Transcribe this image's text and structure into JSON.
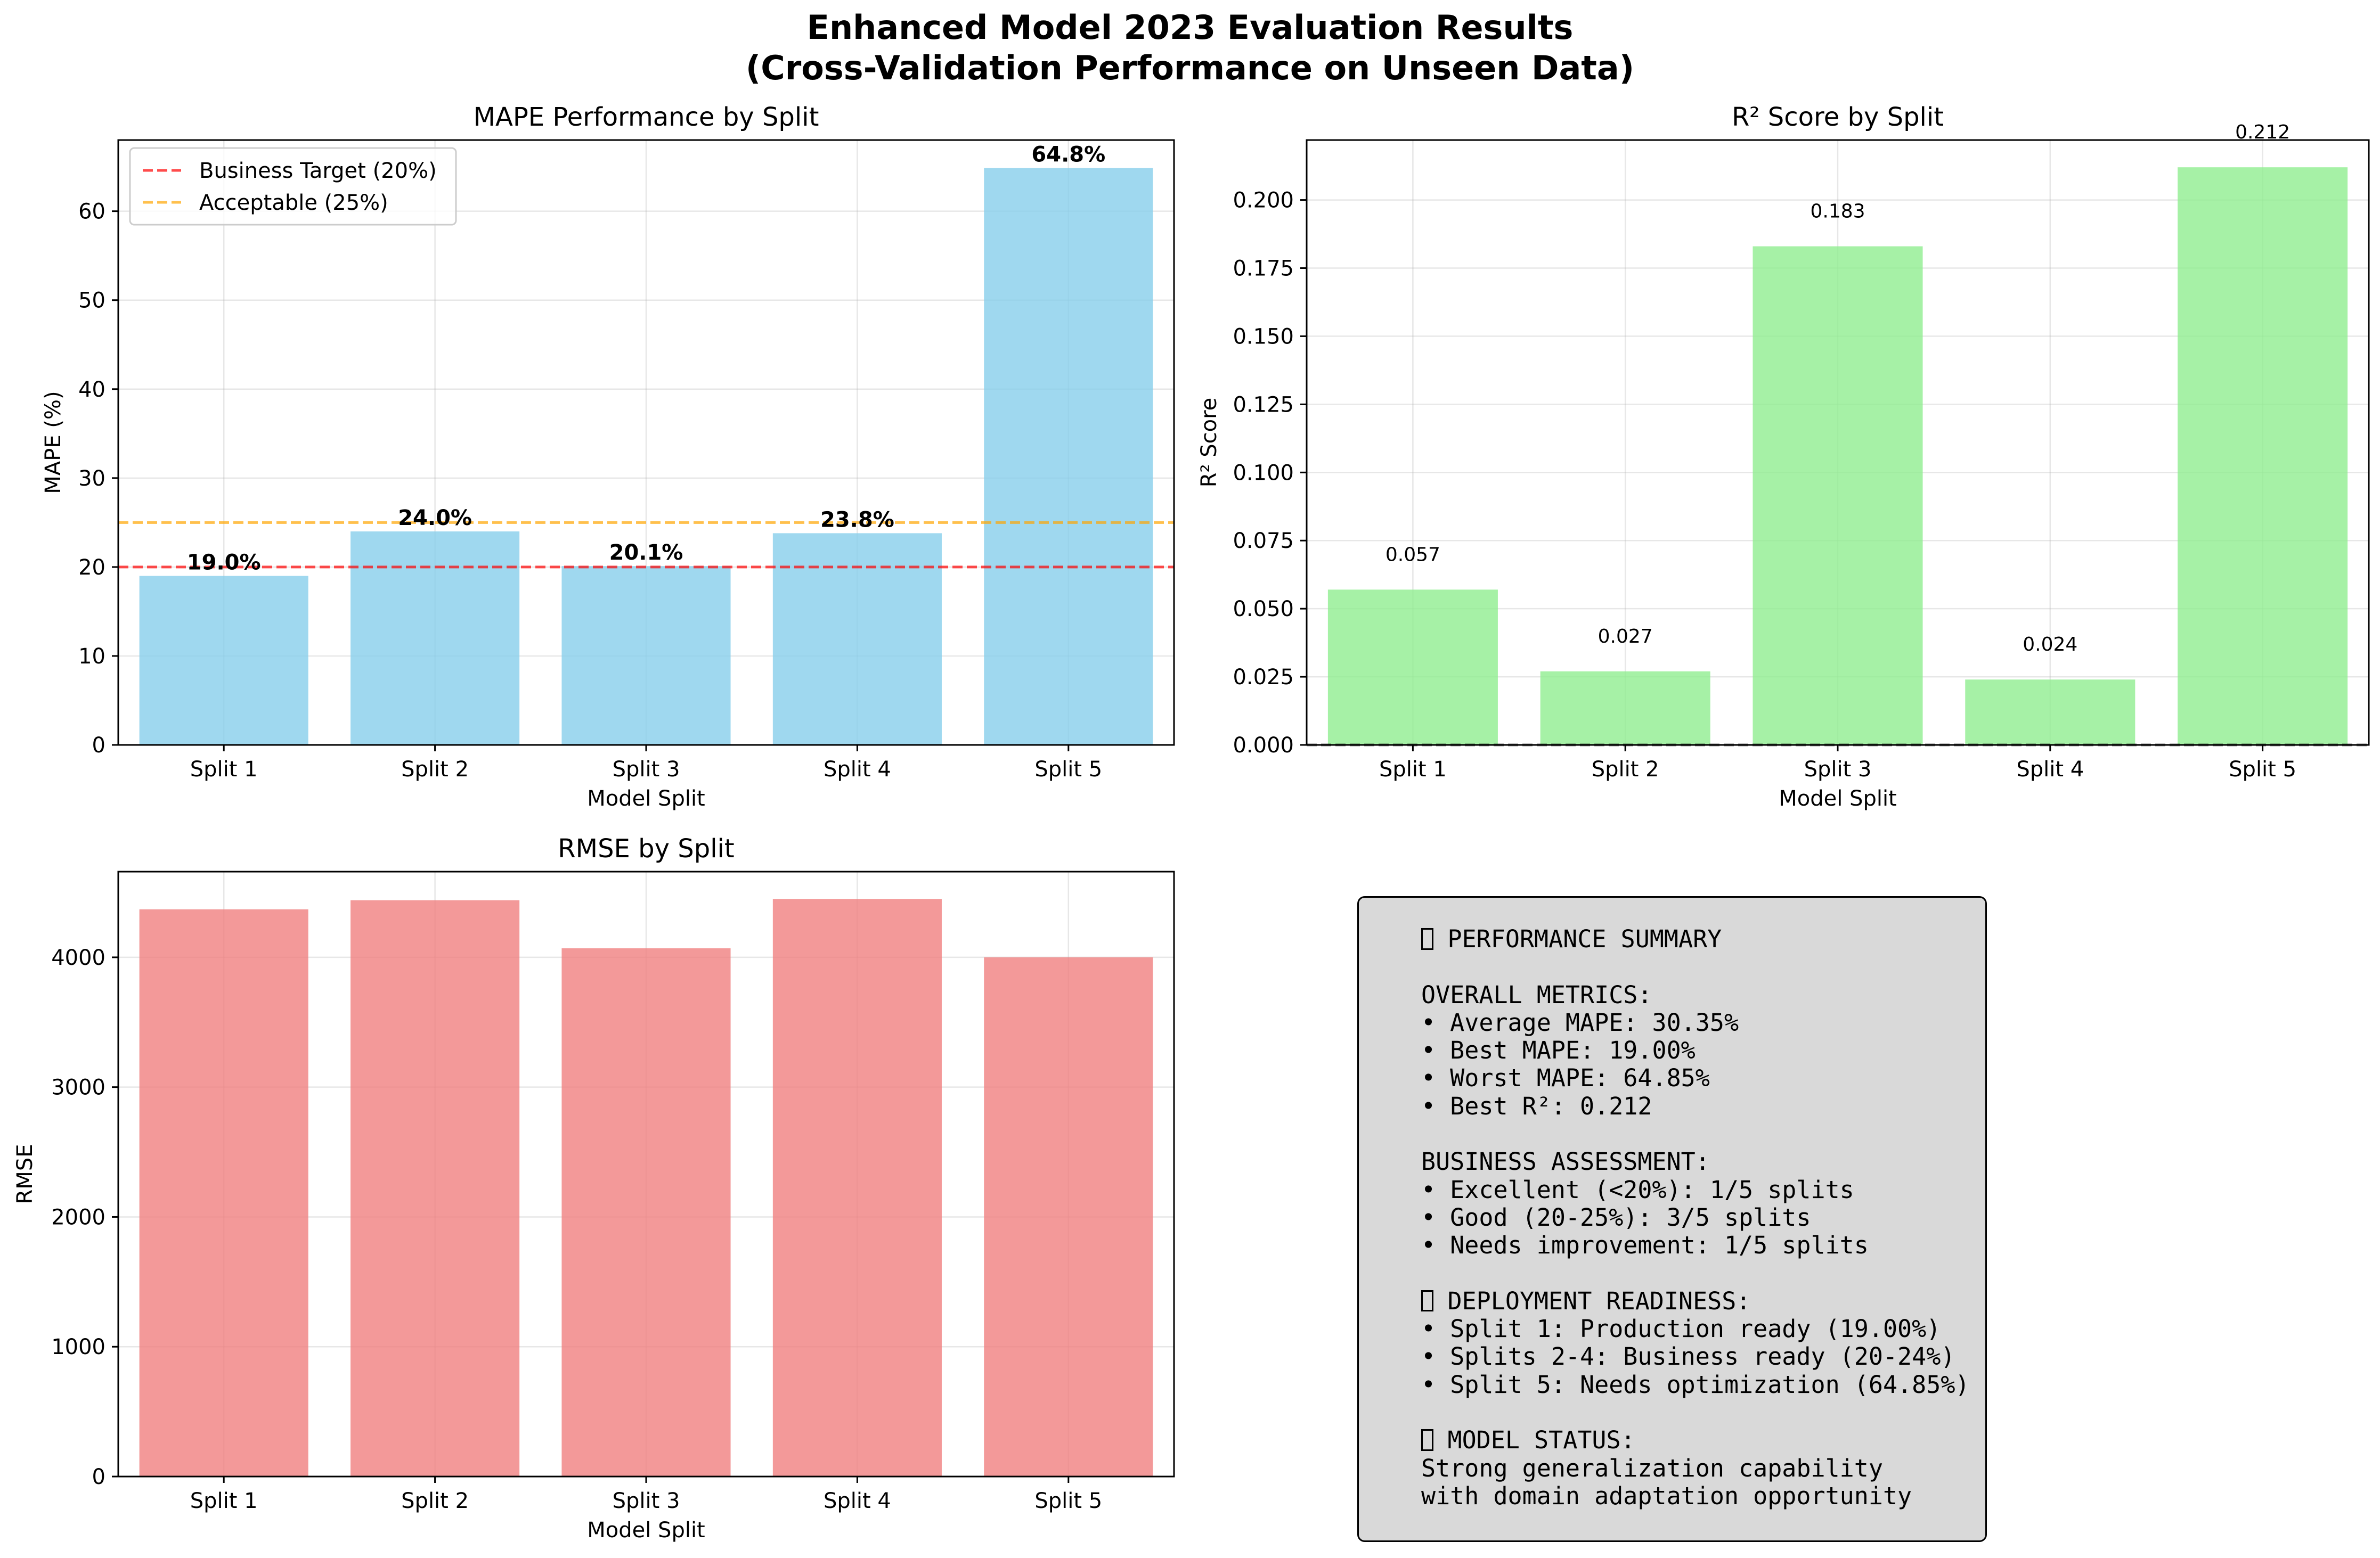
{
  "suptitle": {
    "line1": "Enhanced Model 2023 Evaluation Results",
    "line2": "(Cross-Validation Performance on Unseen Data)"
  },
  "colors": {
    "mape_bar": "#87ceeb",
    "r2_bar": "#90ee90",
    "rmse_bar": "#f08080",
    "target_line": "#ff0000",
    "acceptable_line": "#ffa500",
    "summary_bg": "#d9d9d9"
  },
  "chart_data": [
    {
      "type": "bar",
      "title": "MAPE Performance by Split",
      "xlabel": "Model Split",
      "ylabel": "MAPE (%)",
      "categories": [
        "Split 1",
        "Split 2",
        "Split 3",
        "Split 4",
        "Split 5"
      ],
      "values": [
        19.0,
        24.0,
        20.1,
        23.8,
        64.85
      ],
      "value_labels": [
        "19.0%",
        "24.0%",
        "20.1%",
        "23.8%",
        "64.8%"
      ],
      "ylim": [
        0,
        68
      ],
      "yticks": [
        0,
        10,
        20,
        30,
        40,
        50,
        60
      ],
      "grid": true,
      "legend_position": "upper-left",
      "reference_lines": [
        {
          "name": "Business Target (20%)",
          "y": 20,
          "color": "#ff0000",
          "style": "dashed"
        },
        {
          "name": "Acceptable (25%)",
          "y": 25,
          "color": "#ffa500",
          "style": "dashed"
        }
      ]
    },
    {
      "type": "bar",
      "title": "R² Score by Split",
      "xlabel": "Model Split",
      "ylabel": "R² Score",
      "categories": [
        "Split 1",
        "Split 2",
        "Split 3",
        "Split 4",
        "Split 5"
      ],
      "values": [
        0.057,
        0.027,
        0.183,
        0.024,
        0.212
      ],
      "value_labels": [
        "0.057",
        "0.027",
        "0.183",
        "0.024",
        "0.212"
      ],
      "ylim": [
        0,
        0.222
      ],
      "yticks": [
        "0.000",
        "0.025",
        "0.050",
        "0.075",
        "0.100",
        "0.125",
        "0.150",
        "0.175",
        "0.200"
      ],
      "grid": true,
      "reference_lines": [
        {
          "y": 0,
          "color": "#000000",
          "style": "dashed"
        }
      ]
    },
    {
      "type": "bar",
      "title": "RMSE by Split",
      "xlabel": "Model Split",
      "ylabel": "RMSE",
      "categories": [
        "Split 1",
        "Split 2",
        "Split 3",
        "Split 4",
        "Split 5"
      ],
      "values": [
        4370,
        4440,
        4070,
        4450,
        4000
      ],
      "ylim": [
        0,
        4660
      ],
      "yticks": [
        0,
        1000,
        2000,
        3000,
        4000
      ],
      "grid": true
    }
  ],
  "summary": {
    "icon": "box-glyph",
    "lines": [
      {
        "icon": true,
        "text": "PERFORMANCE SUMMARY"
      },
      {
        "text": ""
      },
      {
        "text": "OVERALL METRICS:"
      },
      {
        "text": "• Average MAPE: 30.35%"
      },
      {
        "text": "• Best MAPE: 19.00%"
      },
      {
        "text": "• Worst MAPE: 64.85%"
      },
      {
        "text": "• Best R²: 0.212"
      },
      {
        "text": ""
      },
      {
        "text": "BUSINESS ASSESSMENT:"
      },
      {
        "text": "• Excellent (<20%): 1/5 splits"
      },
      {
        "text": "• Good (20-25%): 3/5 splits"
      },
      {
        "text": "• Needs improvement: 1/5 splits"
      },
      {
        "text": ""
      },
      {
        "icon": true,
        "text": "DEPLOYMENT READINESS:"
      },
      {
        "text": "• Split 1: Production ready (19.00%)"
      },
      {
        "text": "• Splits 2-4: Business ready (20-24%)"
      },
      {
        "text": "• Split 5: Needs optimization (64.85%)"
      },
      {
        "text": ""
      },
      {
        "icon": true,
        "text": "MODEL STATUS:"
      },
      {
        "text": "Strong generalization capability"
      },
      {
        "text": "with domain adaptation opportunity"
      }
    ]
  }
}
